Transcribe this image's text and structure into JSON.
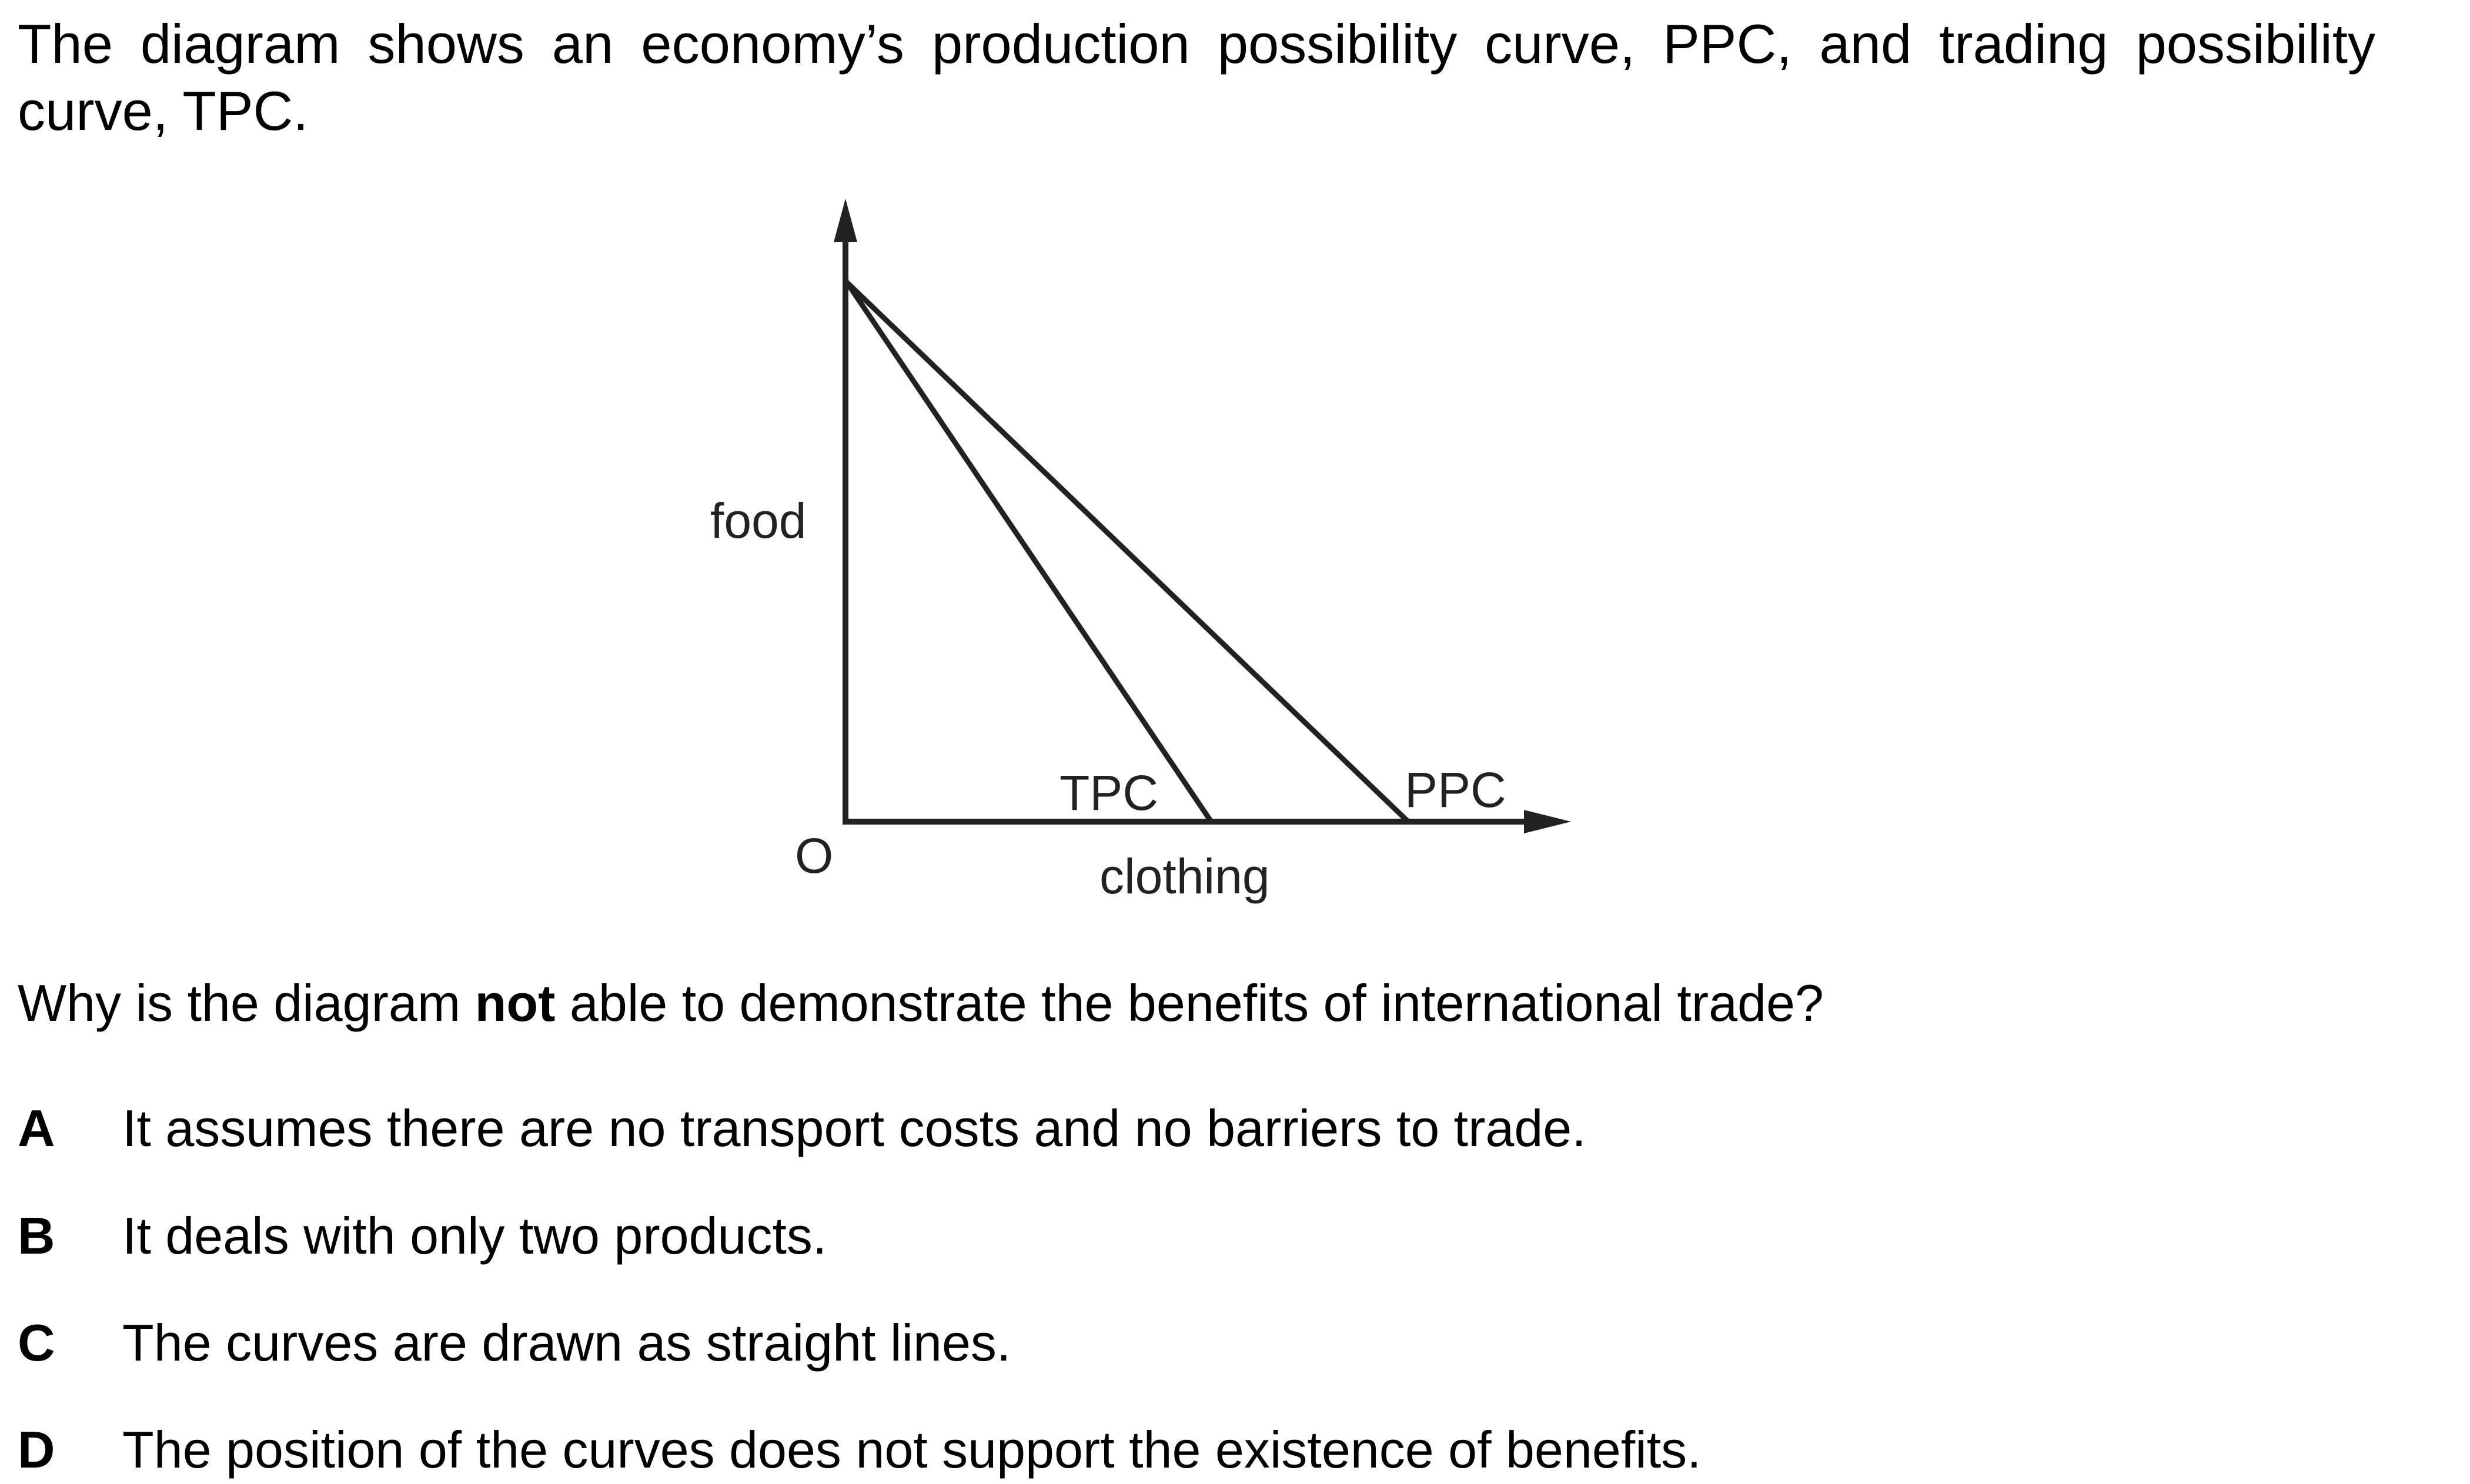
{
  "intro_text": "The diagram shows an economy’s production possibility curve, PPC, and trading possibility curve, TPC.",
  "diagram": {
    "y_axis_label": "food",
    "x_axis_label": "clothing",
    "origin_label": "O",
    "tpc_label": "TPC",
    "ppc_label": "PPC",
    "line_color": "#222222"
  },
  "question": {
    "before": "Why is the diagram ",
    "emphasis": "not",
    "after": " able to demonstrate the benefits of international trade?"
  },
  "options": [
    {
      "letter": "A",
      "text": "It assumes there are no transport costs and no barriers to trade."
    },
    {
      "letter": "B",
      "text": "It deals with only two products."
    },
    {
      "letter": "C",
      "text": "The curves are drawn as straight lines."
    },
    {
      "letter": "D",
      "text": "The position of the curves does not support the existence of benefits."
    }
  ]
}
